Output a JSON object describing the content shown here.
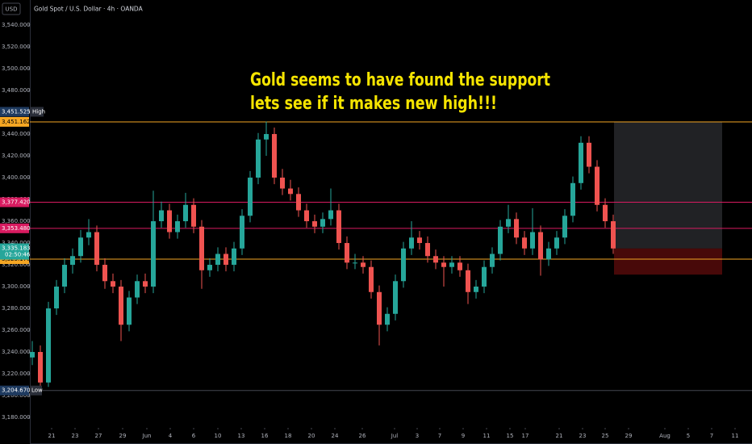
{
  "chart_data": {
    "type": "candlestick",
    "title": "Gold Spot / U.S. Dollar · 4h · OANDA",
    "currency": "USD",
    "annotation": [
      "Gold seems to have found the support",
      "lets see if it makes new high!!!"
    ],
    "up_color": "#26a69a",
    "down_color": "#ef5350",
    "ylim": [
      3172.6,
      3563
    ],
    "xlim": [
      -0.3,
      89.2
    ],
    "yticks": [
      {
        "value": 3180,
        "label": "3,180.000"
      },
      {
        "value": 3200,
        "label": "3,200.000"
      },
      {
        "value": 3220,
        "label": "3,220.000"
      },
      {
        "value": 3240,
        "label": "3,240.000"
      },
      {
        "value": 3260,
        "label": "3,260.000"
      },
      {
        "value": 3280,
        "label": "3,280.000"
      },
      {
        "value": 3300,
        "label": "3,300.000"
      },
      {
        "value": 3320,
        "label": "3,320.000"
      },
      {
        "value": 3340,
        "label": "3,340.000"
      },
      {
        "value": 3360,
        "label": "3,360.000"
      },
      {
        "value": 3380,
        "label": "3,380.000"
      },
      {
        "value": 3400,
        "label": "3,400.000"
      },
      {
        "value": 3420,
        "label": "3,420.000"
      },
      {
        "value": 3440,
        "label": "3,440.000"
      },
      {
        "value": 3460,
        "label": "3,460.000"
      },
      {
        "value": 3480,
        "label": "3,480.000"
      },
      {
        "value": 3500,
        "label": "3,500.000"
      },
      {
        "value": 3520,
        "label": "3,520.000"
      },
      {
        "value": 3540,
        "label": "3,540.000"
      }
    ],
    "xticks": [
      {
        "value": 2.4,
        "label": "21"
      },
      {
        "value": 5.3,
        "label": "23"
      },
      {
        "value": 8.2,
        "label": "27"
      },
      {
        "value": 11.2,
        "label": "29"
      },
      {
        "value": 14.2,
        "label": "Jun"
      },
      {
        "value": 17.1,
        "label": "4"
      },
      {
        "value": 20.0,
        "label": "6"
      },
      {
        "value": 23.0,
        "label": "10"
      },
      {
        "value": 25.9,
        "label": "13"
      },
      {
        "value": 28.8,
        "label": "16"
      },
      {
        "value": 31.7,
        "label": "18"
      },
      {
        "value": 34.6,
        "label": "20"
      },
      {
        "value": 37.5,
        "label": "24"
      },
      {
        "value": 40.9,
        "label": "26"
      },
      {
        "value": 44.9,
        "label": "Jul"
      },
      {
        "value": 47.7,
        "label": "3"
      },
      {
        "value": 50.5,
        "label": "7"
      },
      {
        "value": 53.4,
        "label": "9"
      },
      {
        "value": 56.3,
        "label": "11"
      },
      {
        "value": 59.2,
        "label": "15"
      },
      {
        "value": 61.1,
        "label": "17"
      },
      {
        "value": 65.3,
        "label": "21"
      },
      {
        "value": 68.2,
        "label": "23"
      },
      {
        "value": 71.0,
        "label": "25"
      },
      {
        "value": 73.9,
        "label": "29"
      },
      {
        "value": 78.4,
        "label": "Aug"
      },
      {
        "value": 81.3,
        "label": "5"
      },
      {
        "value": 84.2,
        "label": "7"
      },
      {
        "value": 87.1,
        "label": "11"
      }
    ],
    "candles": [
      [
        3235,
        3250,
        3228,
        3240
      ],
      [
        3240,
        3246,
        3204.67,
        3212
      ],
      [
        3212,
        3286,
        3208,
        3280
      ],
      [
        3280,
        3306,
        3274,
        3300
      ],
      [
        3300,
        3326,
        3294,
        3320
      ],
      [
        3320,
        3335,
        3312,
        3328
      ],
      [
        3328,
        3352,
        3322,
        3345
      ],
      [
        3345,
        3362,
        3338,
        3350
      ],
      [
        3350,
        3356,
        3314,
        3320
      ],
      [
        3320,
        3326,
        3298,
        3305
      ],
      [
        3305,
        3312,
        3294,
        3300
      ],
      [
        3300,
        3306,
        3250,
        3265
      ],
      [
        3265,
        3296,
        3259,
        3290
      ],
      [
        3290,
        3311,
        3284,
        3305
      ],
      [
        3305,
        3312,
        3294,
        3300
      ],
      [
        3300,
        3388,
        3294,
        3360
      ],
      [
        3360,
        3378,
        3354,
        3370
      ],
      [
        3370,
        3376,
        3344,
        3350
      ],
      [
        3350,
        3366,
        3344,
        3360
      ],
      [
        3360,
        3386,
        3354,
        3375
      ],
      [
        3375,
        3381,
        3349,
        3355
      ],
      [
        3355,
        3361,
        3298,
        3315
      ],
      [
        3315,
        3326,
        3309,
        3320
      ],
      [
        3320,
        3336,
        3314,
        3330
      ],
      [
        3330,
        3336,
        3314,
        3320
      ],
      [
        3320,
        3341,
        3314,
        3335
      ],
      [
        3335,
        3371,
        3329,
        3365
      ],
      [
        3365,
        3406,
        3359,
        3400
      ],
      [
        3400,
        3441,
        3394,
        3435
      ],
      [
        3435,
        3451.525,
        3420,
        3440
      ],
      [
        3440,
        3446,
        3394,
        3400
      ],
      [
        3400,
        3408,
        3384,
        3390
      ],
      [
        3390,
        3398,
        3379,
        3385
      ],
      [
        3385,
        3391,
        3364,
        3370
      ],
      [
        3370,
        3376,
        3354,
        3360
      ],
      [
        3360,
        3366,
        3349,
        3355
      ],
      [
        3355,
        3368,
        3349,
        3362
      ],
      [
        3362,
        3390,
        3356,
        3370
      ],
      [
        3370,
        3376,
        3334,
        3340
      ],
      [
        3340,
        3346,
        3316,
        3322
      ],
      [
        3322,
        3330,
        3316,
        3322
      ],
      [
        3322,
        3328,
        3312,
        3318
      ],
      [
        3318,
        3324,
        3289,
        3295
      ],
      [
        3295,
        3301,
        3246,
        3265
      ],
      [
        3265,
        3281,
        3259,
        3275
      ],
      [
        3275,
        3311,
        3269,
        3305
      ],
      [
        3305,
        3341,
        3299,
        3335
      ],
      [
        3335,
        3360,
        3329,
        3345
      ],
      [
        3345,
        3351,
        3334,
        3340
      ],
      [
        3340,
        3346,
        3322,
        3328
      ],
      [
        3328,
        3334,
        3316,
        3322
      ],
      [
        3322,
        3328,
        3300,
        3318
      ],
      [
        3318,
        3328,
        3312,
        3322
      ],
      [
        3322,
        3328,
        3309,
        3315
      ],
      [
        3315,
        3321,
        3284,
        3295
      ],
      [
        3295,
        3306,
        3289,
        3300
      ],
      [
        3300,
        3324,
        3294,
        3318
      ],
      [
        3318,
        3336,
        3312,
        3330
      ],
      [
        3330,
        3361,
        3324,
        3355
      ],
      [
        3355,
        3375,
        3349,
        3362
      ],
      [
        3362,
        3368,
        3339,
        3345
      ],
      [
        3345,
        3351,
        3329,
        3335
      ],
      [
        3335,
        3372,
        3329,
        3350
      ],
      [
        3350,
        3356,
        3310,
        3325
      ],
      [
        3325,
        3341,
        3319,
        3335
      ],
      [
        3335,
        3351,
        3329,
        3345
      ],
      [
        3345,
        3371,
        3339,
        3365
      ],
      [
        3365,
        3401,
        3359,
        3395
      ],
      [
        3395,
        3438,
        3389,
        3432
      ],
      [
        3432,
        3438,
        3404,
        3410
      ],
      [
        3410,
        3416,
        3369,
        3375
      ],
      [
        3375,
        3381,
        3354,
        3360
      ],
      [
        3360,
        3366,
        3330,
        3335
      ]
    ],
    "levels": [
      {
        "value": 3451.162,
        "label": "3,451.162",
        "color": "#f5a623"
      },
      {
        "value": 3377.42,
        "label": "3,377.420",
        "color": "#d81b60"
      },
      {
        "value": 3353.48,
        "label": "3,353.480",
        "color": "#d81b60"
      },
      {
        "value": 3325.178,
        "label": "3,325.178",
        "color": "#f5a623"
      }
    ],
    "high": {
      "value": 3451.525,
      "label": "3,451.525",
      "tag": "High"
    },
    "low": {
      "value": 3204.67,
      "label": "3,204.670",
      "tag": "Low"
    },
    "current": {
      "value": 3335.183,
      "label": "3,335.183",
      "countdown": "02:50:46",
      "color": "#26a69a"
    },
    "position": {
      "target": 3451.162,
      "entry": 3335,
      "stop": 3311
    }
  }
}
